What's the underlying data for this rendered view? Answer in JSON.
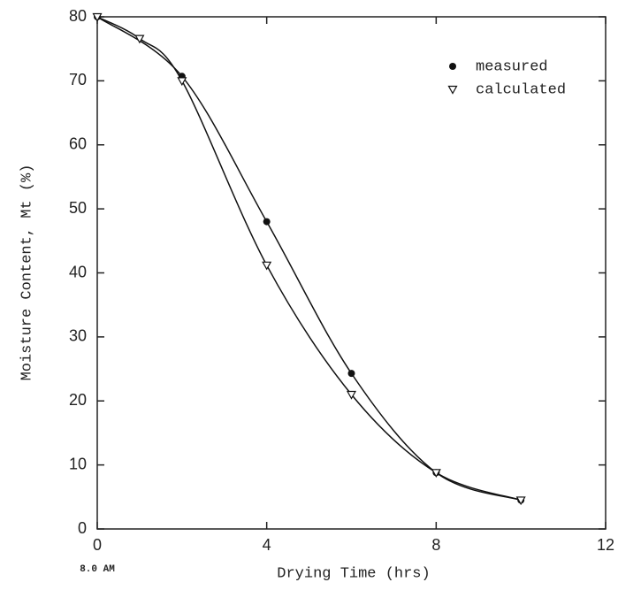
{
  "chart_data": {
    "type": "line",
    "x_label": "Drying Time (hrs)",
    "y_label": "Moisture Content, Mt (%)",
    "annotation": "8.0 AM",
    "legend": "upper right",
    "xlim": [
      0,
      12
    ],
    "xticks": [
      0,
      4,
      8,
      12
    ],
    "ylim": [
      0,
      80
    ],
    "yticks": [
      0,
      10,
      20,
      30,
      40,
      50,
      60,
      70,
      80
    ],
    "series": [
      {
        "name": "measured",
        "color": "#111111",
        "marker": "circle",
        "x": [
          0,
          2,
          4,
          6,
          8,
          10
        ],
        "values": [
          80,
          70.7,
          48,
          24.3,
          8.8,
          4.5
        ]
      },
      {
        "name": "calculated",
        "color": "#111111",
        "marker": "triangle",
        "x": [
          0,
          1,
          2,
          4,
          6,
          8,
          10
        ],
        "values": [
          80,
          76.6,
          70,
          41.2,
          21,
          8.8,
          4.5
        ]
      }
    ]
  }
}
